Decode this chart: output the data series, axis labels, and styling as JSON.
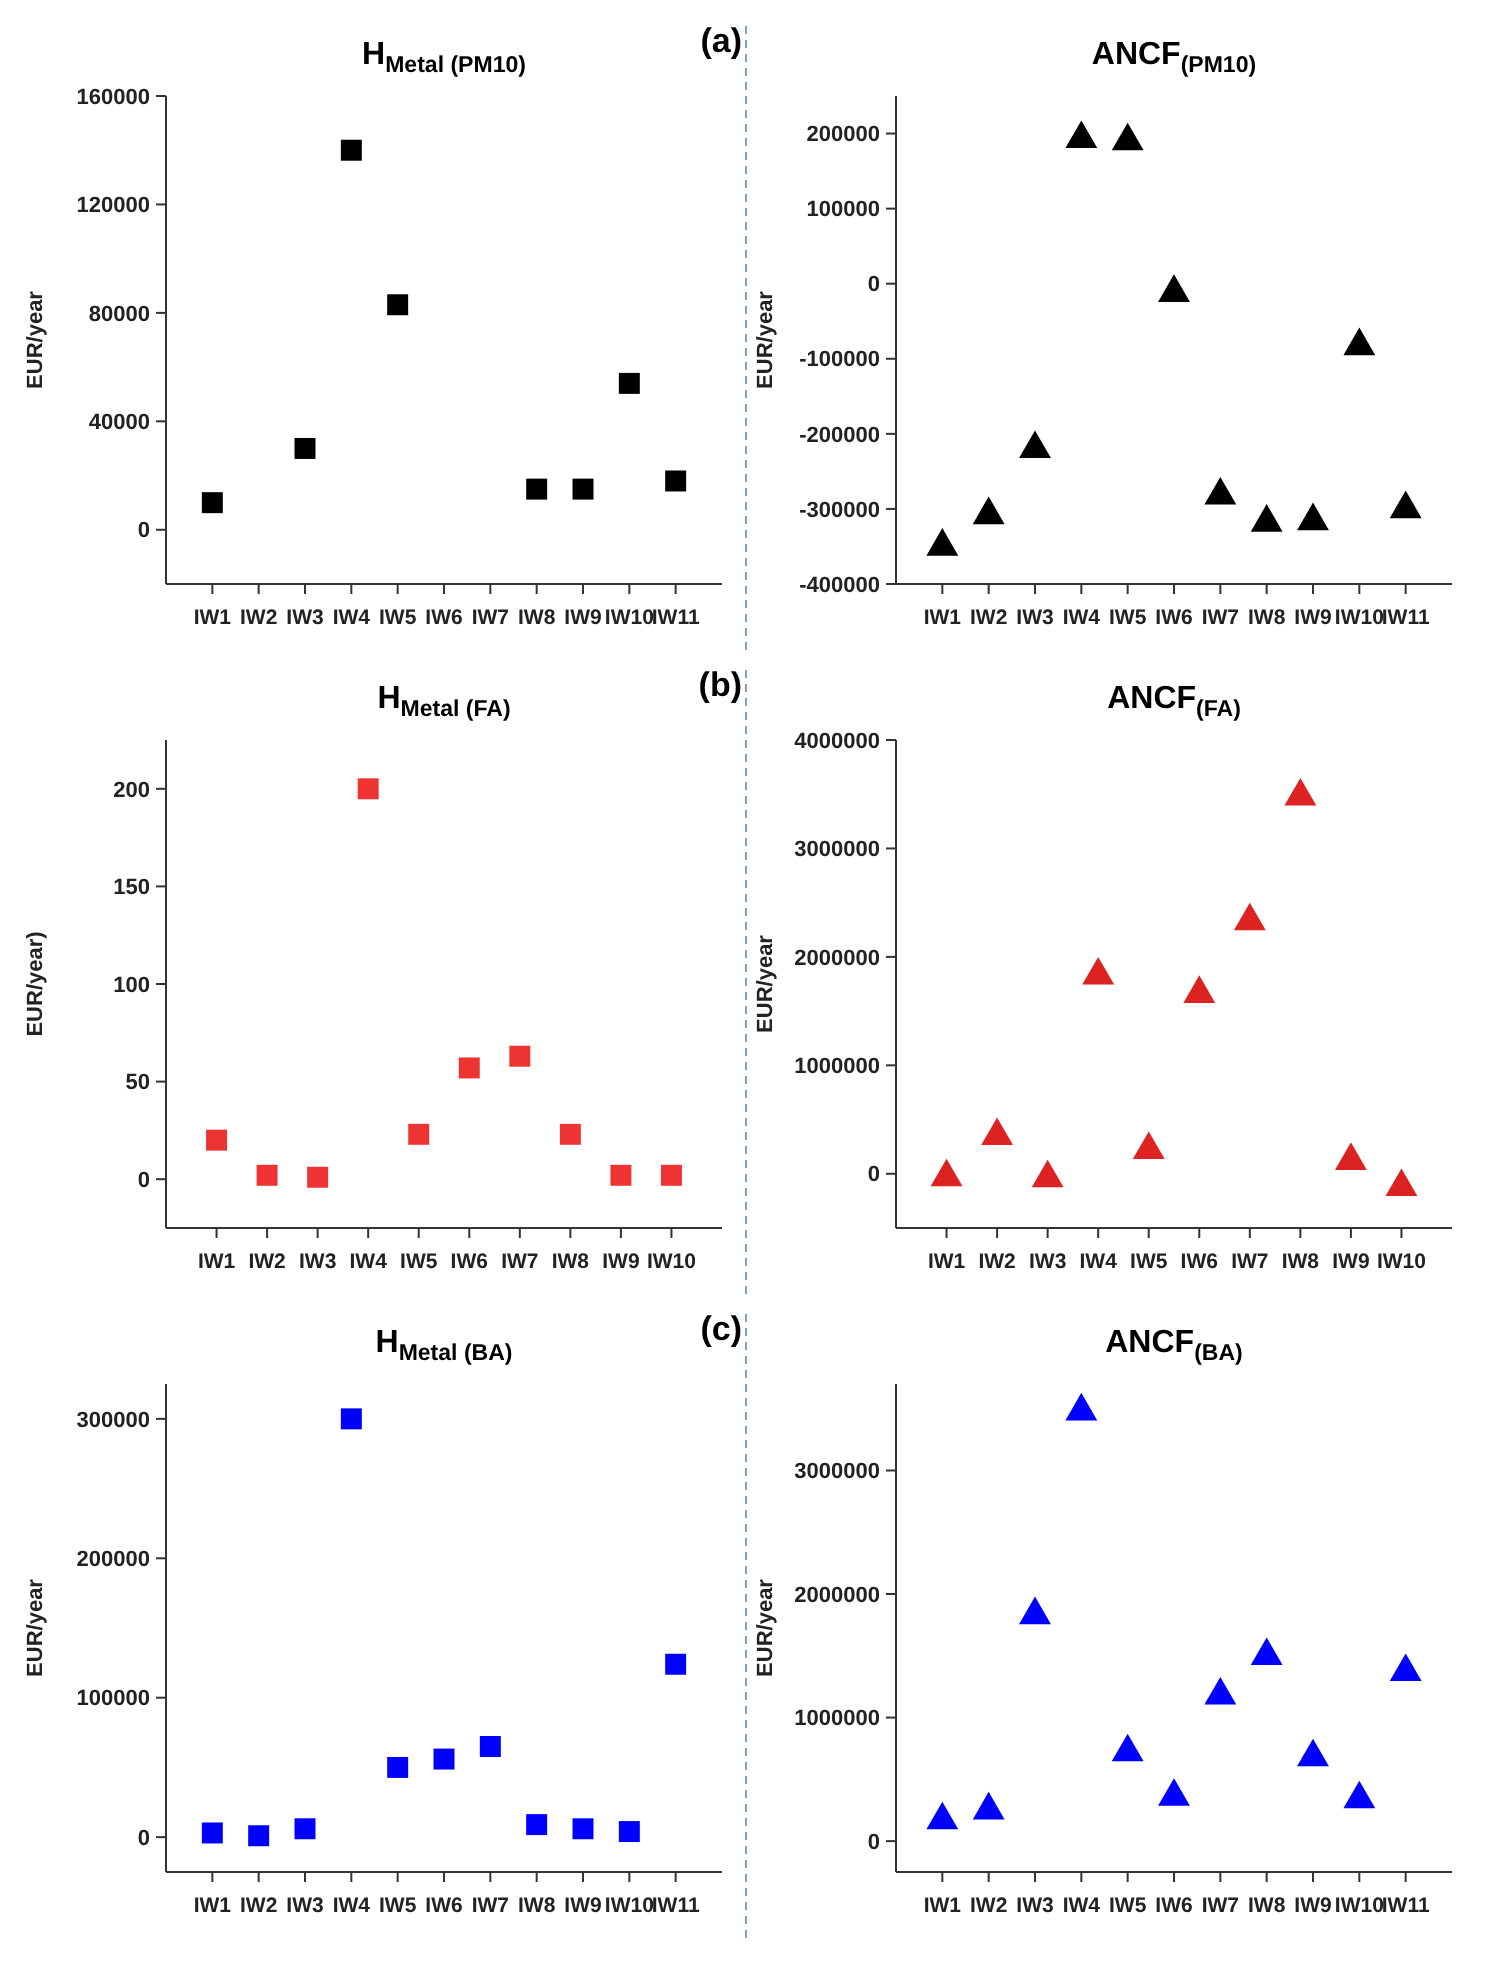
{
  "chart_data": [
    {
      "type": "scatter",
      "title": "H$_{Metal (PM10)}$",
      "ylabel": "EUR/year",
      "categories": [
        "IW1",
        "IW2",
        "IW3",
        "IW4",
        "IW5",
        "IW6",
        "IW7",
        "IW8",
        "IW9",
        "IW10",
        "IW11"
      ],
      "values": [
        10000,
        null,
        30000,
        140000,
        83000,
        null,
        null,
        15000,
        15000,
        54000,
        18000
      ],
      "color": "#000000",
      "marker": "square",
      "ylim": [
        -20000,
        160000
      ],
      "yticks": [
        0,
        40000,
        80000,
        120000,
        160000
      ],
      "annotations": [
        "(a)"
      ]
    },
    {
      "type": "scatter",
      "title": "ANCF$_{(PM10)}$",
      "ylabel": "EUR/year",
      "categories": [
        "IW1",
        "IW2",
        "IW3",
        "IW4",
        "IW5",
        "IW6",
        "IW7",
        "IW8",
        "IW9",
        "IW10",
        "IW11"
      ],
      "values": [
        -350000,
        -308000,
        -220000,
        193000,
        190000,
        -12000,
        -282000,
        -318000,
        -316000,
        -83000,
        -300000
      ],
      "color": "#000000",
      "marker": "triangle",
      "ylim": [
        -400000,
        250000
      ],
      "yticks": [
        -400000,
        -300000,
        -200000,
        -100000,
        0,
        100000,
        200000
      ]
    },
    {
      "type": "scatter",
      "title": "H$_{Metal (FA)}$",
      "ylabel": "EUR/year)",
      "categories": [
        "IW1",
        "IW2",
        "IW3",
        "IW4",
        "IW5",
        "IW6",
        "IW7",
        "IW8",
        "IW9",
        "IW10"
      ],
      "values": [
        20,
        2,
        1,
        200,
        23,
        57,
        63,
        23,
        2,
        2
      ],
      "color": "#ee3333",
      "marker": "square",
      "ylim": [
        -25,
        225
      ],
      "yticks": [
        0,
        50,
        100,
        150,
        200
      ],
      "annotations": [
        "(b)"
      ]
    },
    {
      "type": "scatter",
      "title": "ANCF$_{(FA)}$",
      "ylabel": "EUR/year",
      "categories": [
        "IW1",
        "IW2",
        "IW3",
        "IW4",
        "IW5",
        "IW6",
        "IW7",
        "IW8",
        "IW9",
        "IW10"
      ],
      "values": [
        -30000,
        350000,
        -40000,
        1830000,
        220000,
        1660000,
        2330000,
        3480000,
        120000,
        -120000
      ],
      "color": "#dd2222",
      "marker": "triangle",
      "ylim": [
        -500000,
        4000000
      ],
      "yticks": [
        0,
        1000000,
        2000000,
        3000000,
        4000000
      ]
    },
    {
      "type": "scatter",
      "title": "H$_{Metal (BA)}$",
      "ylabel": "EUR/year",
      "categories": [
        "IW1",
        "IW2",
        "IW3",
        "IW4",
        "IW5",
        "IW6",
        "IW7",
        "IW8",
        "IW9",
        "IW10",
        "IW11"
      ],
      "values": [
        3000,
        1000,
        6000,
        300000,
        50000,
        56000,
        65000,
        9000,
        6000,
        4000,
        124000
      ],
      "color": "#0000ff",
      "marker": "square",
      "ylim": [
        -25000,
        325000
      ],
      "yticks": [
        0,
        100000,
        200000,
        300000
      ],
      "annotations": [
        "(c)"
      ]
    },
    {
      "type": "scatter",
      "title": "ANCF$_{(BA)}$",
      "ylabel": "EUR/year",
      "categories": [
        "IW1",
        "IW2",
        "IW3",
        "IW4",
        "IW5",
        "IW6",
        "IW7",
        "IW8",
        "IW9",
        "IW10",
        "IW11"
      ],
      "values": [
        170000,
        250000,
        1830000,
        3480000,
        720000,
        360000,
        1180000,
        1500000,
        680000,
        340000,
        1370000
      ],
      "color": "#0000ff",
      "marker": "triangle",
      "ylim": [
        -250000,
        3700000
      ],
      "yticks": [
        0,
        1000000,
        2000000,
        3000000
      ]
    }
  ]
}
